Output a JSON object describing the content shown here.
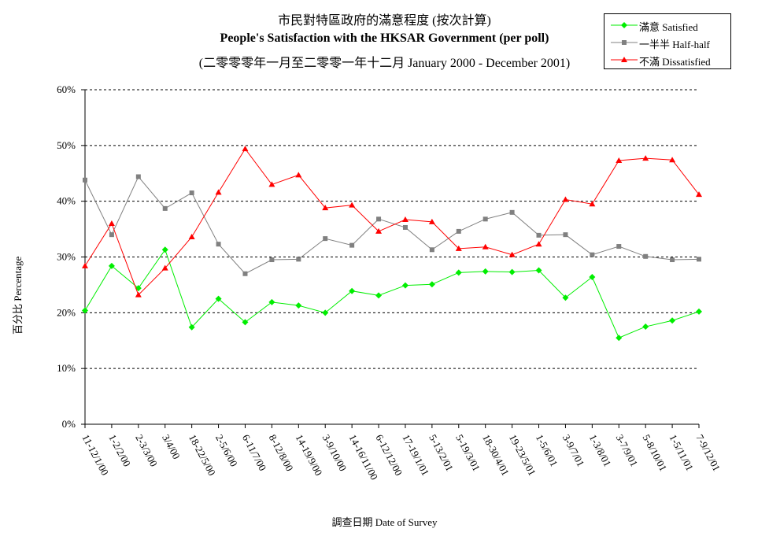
{
  "title": {
    "line1": "市民對特區政府的滿意程度 (按次計算)",
    "line2": "People's Satisfaction with the HKSAR Government (per poll)",
    "line3": "(二零零零年一月至二零零一年十二月 January 2000 - December 2001)"
  },
  "chart_data": {
    "type": "line",
    "title": "People's Satisfaction with the HKSAR Government (per poll)",
    "ylabel": "百分比 Percentage",
    "xlabel": "調查日期 Date of Survey",
    "ylim": [
      0,
      60
    ],
    "yticks": [
      "0%",
      "10%",
      "20%",
      "30%",
      "40%",
      "50%",
      "60%"
    ],
    "grid": "horizontal dashed",
    "legend_position": "top-right",
    "categories": [
      "11-12/1/00",
      "1-2/2/00",
      "2-3/3/00",
      "3/4/00",
      "18-22/5/00",
      "2-5/6/00",
      "6-11/7/00",
      "8-12/8/00",
      "14-19/9/00",
      "3-9/10/00",
      "14-16/11/00",
      "6-12/12/00",
      "17-19/1/01",
      "5-13/2/01",
      "5-19/3/01",
      "18-30/4/01",
      "19-23/5/01",
      "1-5/6/01",
      "3-9/7/01",
      "1-3/8/01",
      "3-7/9/01",
      "5-8/10/01",
      "1-5/11/01",
      "7-9/12/01"
    ],
    "series": [
      {
        "name": "滿意 Satisfied",
        "color": "#00ee00",
        "marker": "diamond",
        "values": [
          20.4,
          28.4,
          24.4,
          31.3,
          17.4,
          22.5,
          18.3,
          21.9,
          21.3,
          20.0,
          23.9,
          23.1,
          24.9,
          25.1,
          27.2,
          27.4,
          27.3,
          27.6,
          22.7,
          26.4,
          15.5,
          17.5,
          18.6,
          20.2
        ]
      },
      {
        "name": "一半半 Half-half",
        "color": "#808080",
        "marker": "square",
        "values": [
          43.8,
          34.0,
          44.4,
          38.7,
          41.5,
          32.3,
          27.0,
          29.5,
          29.6,
          33.3,
          32.1,
          36.8,
          35.3,
          31.3,
          34.6,
          36.8,
          38.0,
          33.9,
          34.0,
          30.4,
          31.9,
          30.1,
          29.5,
          29.6
        ]
      },
      {
        "name": "不滿 Dissatisfied",
        "color": "#ff0000",
        "marker": "triangle",
        "values": [
          28.4,
          36.0,
          23.2,
          28.0,
          33.6,
          41.6,
          49.4,
          43.0,
          44.7,
          38.8,
          39.3,
          34.6,
          36.7,
          36.3,
          31.5,
          31.8,
          30.4,
          32.3,
          40.3,
          39.5,
          47.3,
          47.7,
          47.4,
          41.2
        ]
      }
    ]
  }
}
